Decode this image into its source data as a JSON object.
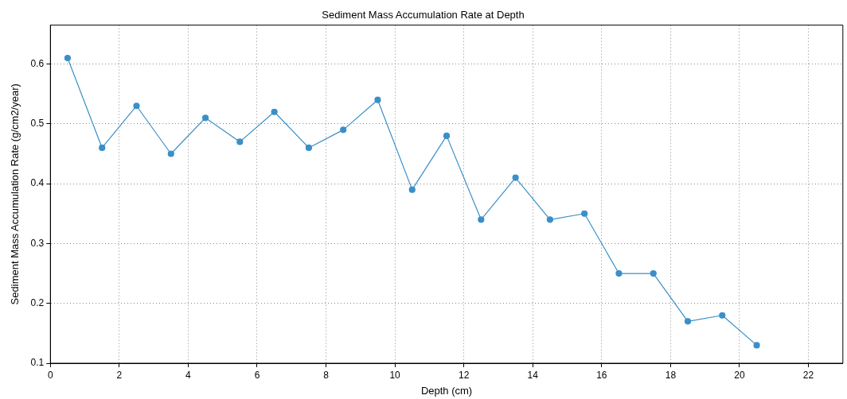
{
  "chart_data": {
    "type": "line",
    "title": "Sediment Mass Accumulation Rate at Depth",
    "xlabel": "Depth (cm)",
    "ylabel": "Sediment Mass Accumulation Rate (g/cm2/year)",
    "x": [
      0.5,
      1.5,
      2.5,
      3.5,
      4.5,
      5.5,
      6.5,
      7.5,
      8.5,
      9.5,
      10.5,
      11.5,
      12.5,
      13.5,
      14.5,
      15.5,
      16.5,
      17.5,
      18.5,
      19.5,
      20.5
    ],
    "series": [
      {
        "color": "#3a8fc8",
        "values": [
          0.61,
          0.46,
          0.53,
          0.45,
          0.51,
          0.47,
          0.52,
          0.46,
          0.49,
          0.54,
          0.39,
          0.48,
          0.34,
          0.41,
          0.34,
          0.35,
          0.25,
          0.25,
          0.17,
          0.18,
          0.13
        ]
      }
    ],
    "xlim": [
      0,
      23
    ],
    "xticks": [
      0,
      2,
      4,
      6,
      8,
      10,
      12,
      14,
      16,
      18,
      20,
      22
    ],
    "ylim": [
      0.1,
      0.665
    ],
    "yticks": [
      0.1,
      0.2,
      0.3,
      0.4,
      0.5,
      0.6
    ],
    "grid": true,
    "legend": false,
    "marker": "circle",
    "line_style": "solid"
  }
}
